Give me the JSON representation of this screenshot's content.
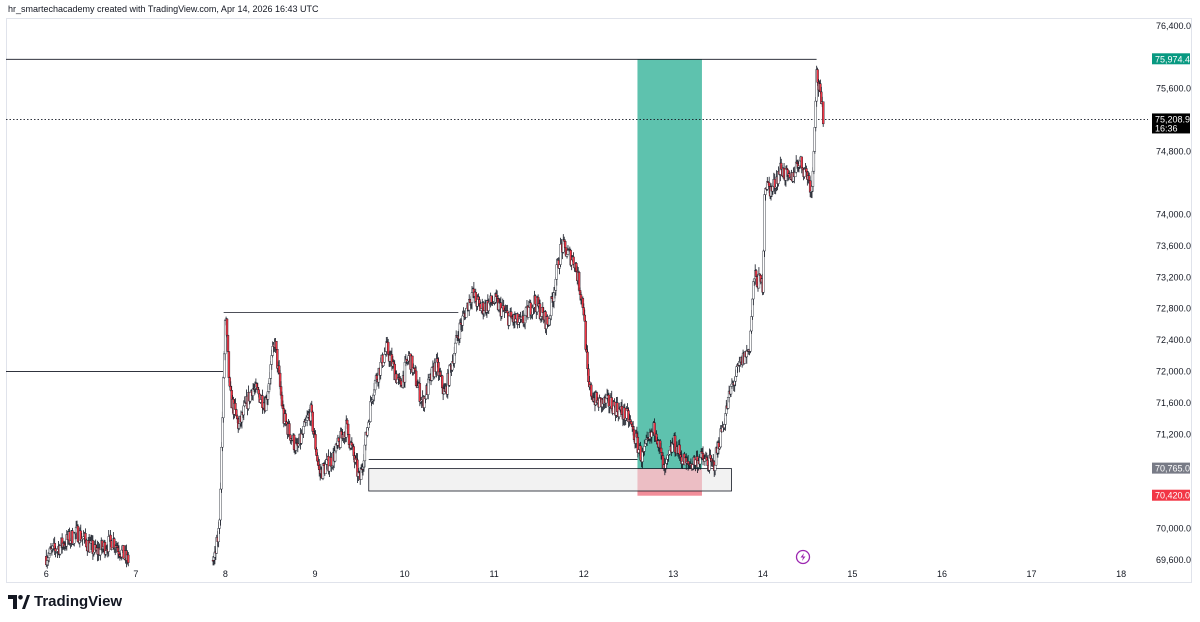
{
  "header": {
    "credit": "hr_smartechacademy created with TradingView.com, Apr 14, 2026 16:43 UTC"
  },
  "brand": {
    "name": "TradingView",
    "logo_icon": "tradingview-logo-icon"
  },
  "colors": {
    "up": "#ffffff",
    "down": "#f23645",
    "wick": "#131722",
    "profit_zone": "#5ec2ae",
    "loss_zone": "#f28d99",
    "box_fill": "#e8e8e8",
    "tag_green": "#089981",
    "tag_black": "#000000",
    "tag_gray": "#787b86",
    "tag_red": "#f23645"
  },
  "chart_data": {
    "type": "candlestick",
    "x_ticks": [
      "6",
      "7",
      "8",
      "9",
      "10",
      "11",
      "12",
      "13",
      "14",
      "15",
      "16",
      "17",
      "18"
    ],
    "y_ticks": [
      "76,400.0",
      "75,600.0",
      "74,800.0",
      "74,000.0",
      "73,600.0",
      "73,200.0",
      "72,800.0",
      "72,400.0",
      "72,000.0",
      "71,600.0",
      "71,200.0",
      "70,000.0",
      "69,600.0"
    ],
    "ylim": [
      69500,
      76500
    ],
    "xlim": [
      5.55,
      18.3
    ],
    "price_tags": [
      {
        "label": "75,974.4",
        "value": 75974.4,
        "color": "green"
      },
      {
        "label": "75,208.9",
        "value": 75208.9,
        "sub": "16:36",
        "color": "black"
      },
      {
        "label": "70,765.0",
        "value": 70765.0,
        "color": "gray"
      },
      {
        "label": "70,420.0",
        "value": 70420.0,
        "color": "red"
      }
    ],
    "path": [
      [
        6.0,
        69650
      ],
      [
        6.35,
        69950
      ],
      [
        6.55,
        69700
      ],
      [
        6.75,
        69850
      ],
      [
        6.9,
        69600
      ],
      [
        7.88,
        69600
      ],
      [
        7.93,
        70000
      ],
      [
        7.98,
        72000
      ],
      [
        8.0,
        72750
      ],
      [
        8.05,
        71700
      ],
      [
        8.15,
        71300
      ],
      [
        8.3,
        71800
      ],
      [
        8.45,
        71600
      ],
      [
        8.55,
        72400
      ],
      [
        8.65,
        71400
      ],
      [
        8.8,
        71000
      ],
      [
        8.95,
        71500
      ],
      [
        9.05,
        70700
      ],
      [
        9.2,
        70900
      ],
      [
        9.35,
        71300
      ],
      [
        9.5,
        70600
      ],
      [
        9.65,
        71800
      ],
      [
        9.8,
        72300
      ],
      [
        9.95,
        71800
      ],
      [
        10.05,
        72200
      ],
      [
        10.2,
        71600
      ],
      [
        10.35,
        72100
      ],
      [
        10.45,
        71700
      ],
      [
        10.6,
        72500
      ],
      [
        10.75,
        73000
      ],
      [
        10.85,
        72800
      ],
      [
        11.0,
        72900
      ],
      [
        11.15,
        72700
      ],
      [
        11.3,
        72600
      ],
      [
        11.45,
        72900
      ],
      [
        11.6,
        72600
      ],
      [
        11.75,
        73600
      ],
      [
        11.9,
        73400
      ],
      [
        12.0,
        72800
      ],
      [
        12.05,
        71800
      ],
      [
        12.15,
        71600
      ],
      [
        12.3,
        71600
      ],
      [
        12.5,
        71400
      ],
      [
        12.65,
        70900
      ],
      [
        12.8,
        71300
      ],
      [
        12.9,
        70700
      ],
      [
        13.0,
        71100
      ],
      [
        13.15,
        70800
      ],
      [
        13.3,
        70900
      ],
      [
        13.45,
        70800
      ],
      [
        13.55,
        71300
      ],
      [
        13.65,
        71800
      ],
      [
        13.75,
        72100
      ],
      [
        13.85,
        72300
      ],
      [
        13.9,
        73200
      ],
      [
        14.0,
        73100
      ],
      [
        14.02,
        74400
      ],
      [
        14.1,
        74300
      ],
      [
        14.2,
        74600
      ],
      [
        14.3,
        74400
      ],
      [
        14.4,
        74700
      ],
      [
        14.5,
        74500
      ],
      [
        14.55,
        74300
      ],
      [
        14.6,
        75800
      ],
      [
        14.68,
        75200
      ]
    ],
    "levels": [
      {
        "y": 75974.4,
        "x0": 5.55,
        "x1": 14.6,
        "style": "solid"
      },
      {
        "y": 75208.9,
        "x0": 5.55,
        "x1": 18.3,
        "style": "dotted"
      },
      {
        "y": 72000,
        "x0": 5.55,
        "x1": 7.98,
        "style": "solid"
      },
      {
        "y": 72750,
        "x0": 7.98,
        "x1": 10.6,
        "style": "solid"
      },
      {
        "y": 70880,
        "x0": 9.6,
        "x1": 12.6,
        "style": "solid"
      }
    ],
    "zones": [
      {
        "kind": "profit",
        "x0": 12.6,
        "x1": 13.32,
        "y0": 70765,
        "y1": 75974.4
      },
      {
        "kind": "loss",
        "x0": 12.6,
        "x1": 13.32,
        "y0": 70420,
        "y1": 70765
      },
      {
        "kind": "box",
        "x0": 9.6,
        "x1": 13.65,
        "y0": 70480,
        "y1": 70765
      }
    ]
  }
}
